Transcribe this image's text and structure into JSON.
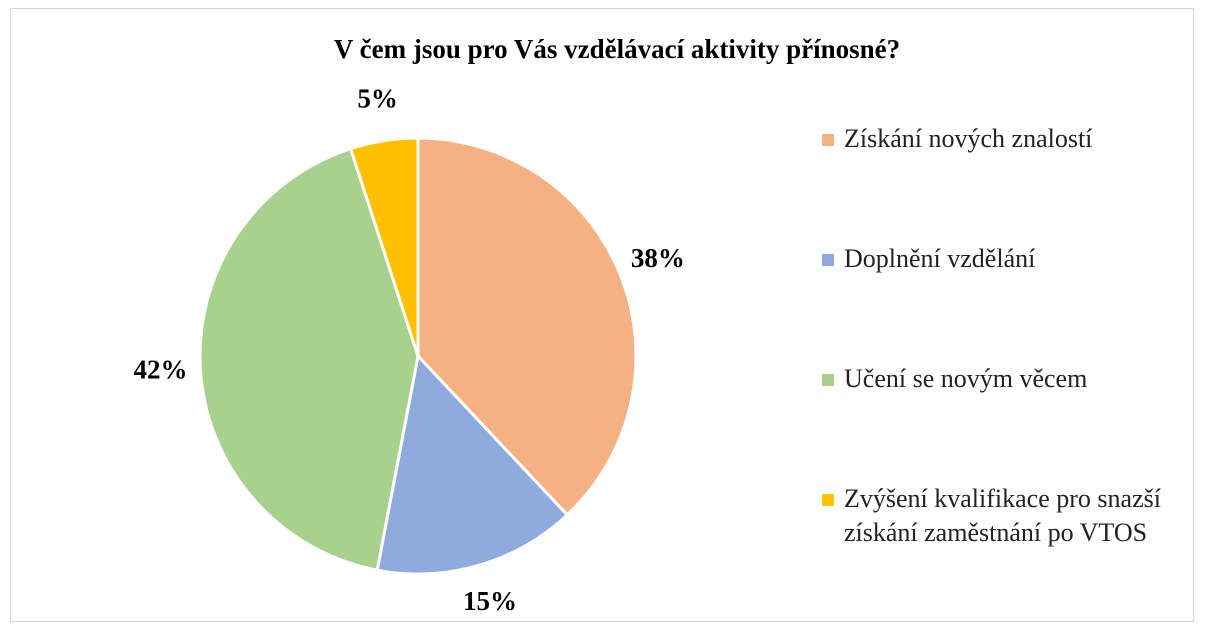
{
  "chart_data": {
    "type": "pie",
    "title": "V čem jsou pro Vás vzdělávací aktivity přínosné?",
    "categories": [
      "Získání nových znalostí",
      "Doplnění vzdělání",
      "Učení se novým věcem",
      "Zvýšení kvalifikace pro snazší získání zaměstnání po VTOS"
    ],
    "values": [
      38,
      15,
      42,
      5
    ],
    "value_labels": [
      "38%",
      "15%",
      "42%",
      "5%"
    ],
    "colors": [
      "#f4b183",
      "#8faadc",
      "#a9d18e",
      "#ffc000"
    ],
    "legend": "right"
  }
}
